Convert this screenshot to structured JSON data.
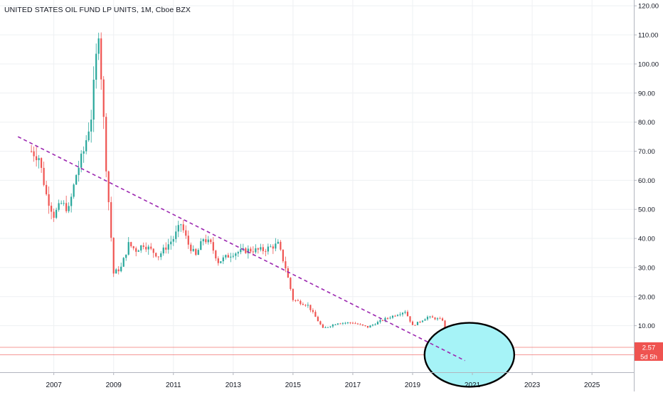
{
  "header": {
    "symbol_title": "UNITED STATES OIL FUND LP UNITS, 1M, Cboe BZX"
  },
  "price_badge": {
    "value": "2.57",
    "timer": "5d 5h"
  },
  "colors": {
    "up": "#26a69a",
    "down": "#ef5350",
    "trendline": "#9c27b0",
    "ellipse_fill": "#a6f3f7",
    "ellipse_stroke": "#000000",
    "price_line": "#ef5350",
    "grid": "#eef0f3"
  },
  "chart_data": {
    "type": "candlestick",
    "title": "UNITED STATES OIL FUND LP UNITS, 1M, Cboe BZX",
    "interval": "1M",
    "y_ticks": [
      "10.00",
      "20.00",
      "30.00",
      "40.00",
      "50.00",
      "60.00",
      "70.00",
      "80.00",
      "90.00",
      "100.00",
      "110.00",
      "120.00"
    ],
    "y_tick_values": [
      10,
      20,
      30,
      40,
      50,
      60,
      70,
      80,
      90,
      100,
      110,
      120
    ],
    "x_ticks": [
      "2007",
      "2009",
      "2011",
      "2013",
      "2015",
      "2017",
      "2019",
      "2021",
      "2023",
      "2025"
    ],
    "x_tick_years": [
      2007,
      2009,
      2011,
      2013,
      2015,
      2017,
      2019,
      2021,
      2023,
      2025
    ],
    "ylim": [
      -6,
      122
    ],
    "xlim": [
      2005.2,
      2026.4
    ],
    "grid": true,
    "last_price": 2.57,
    "price_anchors": [
      [
        2006.25,
        70
      ],
      [
        2006.5,
        68
      ],
      [
        2006.75,
        55
      ],
      [
        2007.0,
        48
      ],
      [
        2007.25,
        52
      ],
      [
        2007.5,
        50
      ],
      [
        2007.75,
        62
      ],
      [
        2008.0,
        70
      ],
      [
        2008.25,
        82
      ],
      [
        2008.5,
        112
      ],
      [
        2008.75,
        65
      ],
      [
        2009.0,
        28
      ],
      [
        2009.25,
        30
      ],
      [
        2009.5,
        38
      ],
      [
        2009.75,
        36
      ],
      [
        2010.0,
        38
      ],
      [
        2010.5,
        34
      ],
      [
        2011.0,
        40
      ],
      [
        2011.25,
        45
      ],
      [
        2011.5,
        38
      ],
      [
        2011.75,
        34
      ],
      [
        2012.0,
        40
      ],
      [
        2012.25,
        38
      ],
      [
        2012.5,
        32
      ],
      [
        2013.0,
        35
      ],
      [
        2013.5,
        36
      ],
      [
        2014.0,
        36
      ],
      [
        2014.5,
        38
      ],
      [
        2014.75,
        30
      ],
      [
        2015.0,
        19
      ],
      [
        2015.5,
        17
      ],
      [
        2016.0,
        9
      ],
      [
        2016.5,
        11
      ],
      [
        2017.0,
        11
      ],
      [
        2017.5,
        9.5
      ],
      [
        2018.0,
        12
      ],
      [
        2018.75,
        15
      ],
      [
        2019.0,
        10
      ],
      [
        2019.5,
        13
      ],
      [
        2020.0,
        12
      ],
      [
        2020.15,
        7
      ],
      [
        2020.25,
        3
      ]
    ],
    "annotations": [
      {
        "type": "trendline",
        "style": "dashed",
        "from": [
          2005.8,
          75
        ],
        "to": [
          2020.75,
          -2
        ]
      },
      {
        "type": "ellipse",
        "center": [
          2020.9,
          0
        ],
        "rx_years": 1.5,
        "ry_price": 11
      },
      {
        "type": "horizontal-line",
        "value": 2.57
      },
      {
        "type": "horizontal-line",
        "value": 0
      }
    ]
  }
}
